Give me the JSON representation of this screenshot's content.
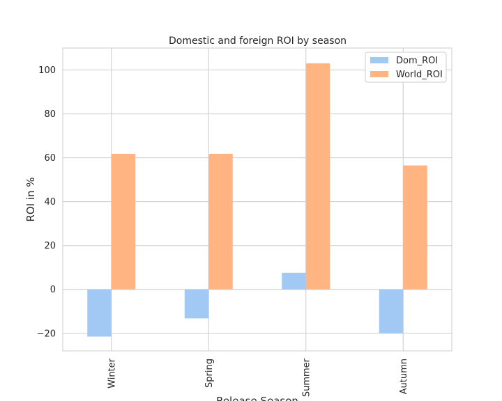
{
  "chart_data": {
    "type": "bar",
    "title": "Domestic and foreign ROI by season",
    "xlabel": "Release Season",
    "ylabel": "ROI in %",
    "categories": [
      "Winter",
      "Spring",
      "Summer",
      "Autumn"
    ],
    "series": [
      {
        "name": "Dom_ROI",
        "values": [
          -21.5,
          -13.2,
          7.6,
          -20.0
        ],
        "color": "#a1c9f4"
      },
      {
        "name": "World_ROI",
        "values": [
          61.8,
          61.8,
          103.0,
          56.5
        ],
        "color": "#ffb482"
      }
    ],
    "ylim": [
      -28,
      110
    ],
    "yticks": [
      -20,
      0,
      20,
      40,
      60,
      80,
      100
    ],
    "ytick_labels": [
      "−20",
      "0",
      "20",
      "40",
      "60",
      "80",
      "100"
    ],
    "grid": true,
    "legend_position": "top-right"
  }
}
